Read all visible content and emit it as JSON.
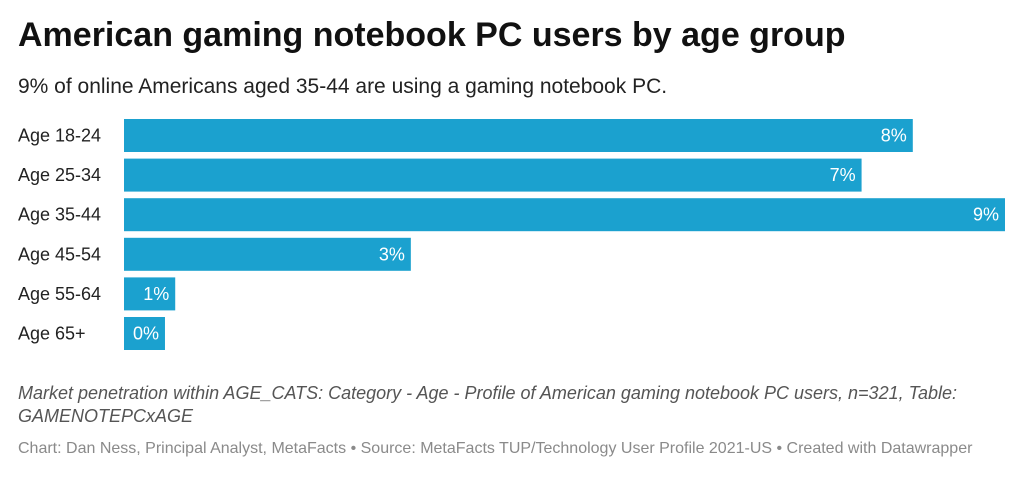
{
  "title": "American gaming notebook PC users by age group",
  "subtitle": "9% of online Americans aged 35-44 are using a gaming notebook PC.",
  "notes": "Market penetration within AGE_CATS: Category - Age - Profile of American gaming notebook PC users, n=321, Table: GAMENOTEPCxAGE",
  "byline": "Chart: Dan Ness, Principal Analyst, MetaFacts • Source: MetaFacts TUP/Technology User Profile 2021-US • Created with Datawrapper",
  "colors": {
    "bar": "#1ba1cf"
  },
  "chart_data": {
    "type": "bar",
    "orientation": "horizontal",
    "categories": [
      "Age 18-24",
      "Age 25-34",
      "Age 35-44",
      "Age 45-54",
      "Age 55-64",
      "Age 65+"
    ],
    "values": [
      7.7,
      7.2,
      8.6,
      2.8,
      0.5,
      0.4
    ],
    "labels": [
      "8%",
      "7%",
      "9%",
      "3%",
      "1%",
      "0%"
    ],
    "xlim": [
      0,
      8.6
    ],
    "grid": false,
    "legend": "none"
  }
}
